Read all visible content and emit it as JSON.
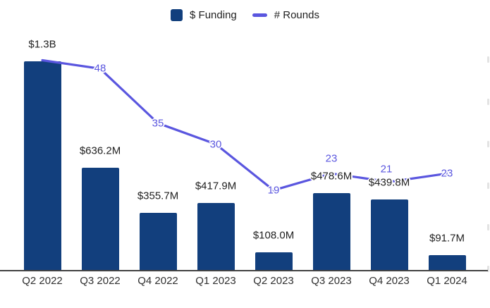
{
  "chart": {
    "legend": [
      {
        "label": "$ Funding",
        "swatch": "square"
      },
      {
        "label": "# Rounds",
        "swatch": "line"
      }
    ],
    "colors": {
      "bar": "#123F7D",
      "line": "#5A56DF",
      "value_text": "#1F1F1F",
      "tick_text": "#303030",
      "axis": "#424242"
    }
  },
  "chart_data": {
    "type": "bar",
    "subtype": "bar+line combo, dual axis",
    "categories": [
      "Q2 2022",
      "Q3 2022",
      "Q4 2022",
      "Q1 2023",
      "Q2 2023",
      "Q3 2023",
      "Q4 2023",
      "Q1 2024"
    ],
    "series": [
      {
        "name": "$ Funding",
        "type": "bar",
        "axis": "left",
        "unit": "USD millions",
        "values": [
          1300,
          636.2,
          355.7,
          417.9,
          108.0,
          478.6,
          439.8,
          91.7
        ],
        "value_labels": [
          "$1.3B",
          "$636.2M",
          "$355.7M",
          "$417.9M",
          "$108.0M",
          "$478.6M",
          "$439.8M",
          "$91.7M"
        ]
      },
      {
        "name": "# Rounds",
        "type": "line",
        "axis": "right",
        "values": [
          50,
          48,
          35,
          30,
          19,
          23,
          21,
          23
        ],
        "value_labels": [
          "",
          "48",
          "35",
          "30",
          "19",
          "23",
          "21",
          "23"
        ],
        "first_point_label_hidden": true
      }
    ],
    "title": "",
    "xlabel": "",
    "ylabel": "",
    "grid": false,
    "legend_position": "top-center",
    "x_axis_baseline": true,
    "y_axis_labels_visible": false
  }
}
